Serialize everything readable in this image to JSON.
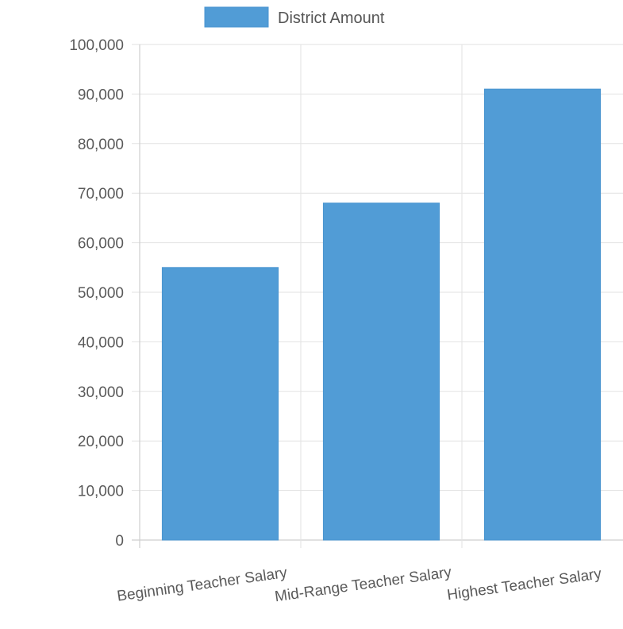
{
  "chart_data": {
    "type": "bar",
    "title": "",
    "xlabel": "",
    "ylabel": "",
    "categories": [
      "Beginning Teacher Salary",
      "Mid-Range Teacher Salary",
      "Highest Teacher Salary"
    ],
    "series": [
      {
        "name": "District Amount",
        "values": [
          55000,
          68000,
          91000
        ],
        "color": "#519cd6"
      }
    ],
    "ylim": [
      0,
      100000
    ],
    "yticks": [
      "0",
      "10,000",
      "20,000",
      "30,000",
      "40,000",
      "50,000",
      "60,000",
      "70,000",
      "80,000",
      "90,000",
      "100,000"
    ],
    "grid": true,
    "legend_position": "top"
  }
}
